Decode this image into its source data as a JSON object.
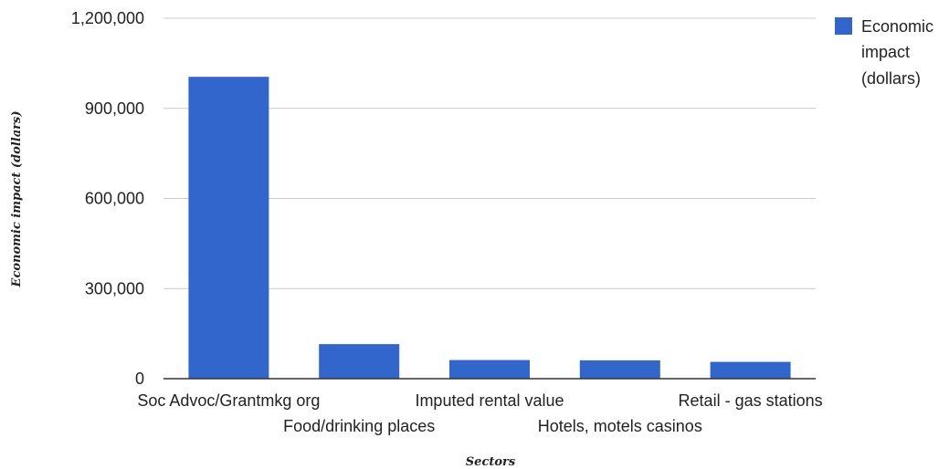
{
  "chart_data": {
    "type": "bar",
    "title": "",
    "xlabel": "Sectors",
    "ylabel": "Economic impact (dollars)",
    "categories": [
      "Soc Advoc/Grantmkg org",
      "Food/drinking places",
      "Imputed rental value",
      "Hotels, motels casinos",
      "Retail - gas stations"
    ],
    "series": [
      {
        "name": "Economic impact (dollars)",
        "legend_lines": [
          "Economic",
          "impact",
          "(dollars)"
        ],
        "color": "#3366cc",
        "values": [
          1005000,
          115000,
          62000,
          61000,
          56000
        ]
      }
    ],
    "ylim": [
      0,
      1200000
    ],
    "yticks": [
      0,
      300000,
      600000,
      900000,
      1200000
    ],
    "ytick_labels": [
      "0",
      "300,000",
      "600,000",
      "900,000",
      "1,200,000"
    ],
    "grid": true,
    "legend_position": "right"
  }
}
